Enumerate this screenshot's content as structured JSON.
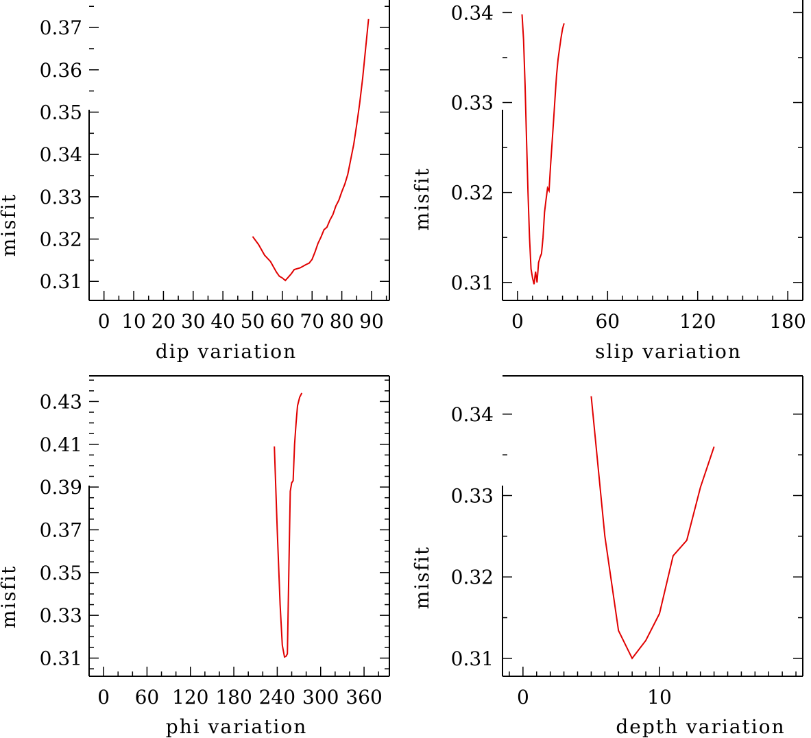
{
  "chart_data": [
    {
      "id": "dip",
      "type": "line",
      "xlabel": "dip    variation",
      "ylabel": "misfit",
      "xlim": [
        -5,
        96
      ],
      "ylim": [
        0.3055,
        0.3765
      ],
      "xticks": [
        0,
        10,
        20,
        30,
        40,
        50,
        60,
        70,
        80,
        90
      ],
      "xtick_labels": [
        "0",
        "10",
        "20",
        "30",
        "40",
        "50",
        "60",
        "70",
        "80",
        "90"
      ],
      "x_minor_step": 5,
      "yticks": [
        0.31,
        0.32,
        0.33,
        0.34,
        0.35,
        0.36,
        0.37
      ],
      "ytick_labels": [
        "0.31",
        "0.32",
        "0.33",
        "0.34",
        "0.35",
        "0.36",
        "0.37"
      ],
      "y_minor_step": 0.005,
      "series": [
        {
          "name": "misfit",
          "color": "#e00000",
          "x": [
            50,
            52,
            54,
            56,
            58,
            59,
            60,
            61,
            62,
            63,
            64,
            66,
            68,
            69,
            70,
            71,
            72,
            73,
            74,
            75,
            76,
            77,
            78,
            79,
            80,
            81,
            82,
            83,
            84,
            85,
            86,
            87,
            88,
            89
          ],
          "y": [
            0.3206,
            0.3187,
            0.3162,
            0.3147,
            0.3122,
            0.3112,
            0.3108,
            0.3102,
            0.311,
            0.3118,
            0.3128,
            0.3132,
            0.314,
            0.3143,
            0.3152,
            0.317,
            0.319,
            0.3205,
            0.3222,
            0.3228,
            0.3245,
            0.3258,
            0.3278,
            0.3292,
            0.3312,
            0.333,
            0.3353,
            0.3388,
            0.3424,
            0.347,
            0.352,
            0.358,
            0.365,
            0.372
          ]
        }
      ]
    },
    {
      "id": "slip",
      "type": "line",
      "xlabel": "slip    variation",
      "ylabel": "misfit",
      "xlim": [
        -10,
        190
      ],
      "ylim": [
        0.308,
        0.3414
      ],
      "xticks": [
        0,
        60,
        120,
        180
      ],
      "xtick_labels": [
        "0",
        "60",
        "120",
        "180"
      ],
      "x_minor_step": 10,
      "yticks": [
        0.31,
        0.32,
        0.33,
        0.34
      ],
      "ytick_labels": [
        "0.31",
        "0.32",
        "0.33",
        "0.34"
      ],
      "y_minor_step": 0.005,
      "series": [
        {
          "name": "misfit",
          "color": "#e00000",
          "x": [
            3,
            4,
            5,
            6,
            7,
            8,
            9,
            10,
            11,
            12,
            13,
            14,
            15,
            16,
            17,
            18,
            19,
            20,
            21,
            22,
            23,
            24,
            25,
            26,
            27,
            28,
            29,
            30,
            31
          ],
          "y": [
            0.3398,
            0.337,
            0.332,
            0.326,
            0.32,
            0.315,
            0.3115,
            0.3105,
            0.3098,
            0.3112,
            0.31,
            0.3122,
            0.3128,
            0.3132,
            0.315,
            0.3178,
            0.3192,
            0.3205,
            0.3202,
            0.323,
            0.3255,
            0.328,
            0.3305,
            0.333,
            0.3348,
            0.336,
            0.3372,
            0.3382,
            0.3388
          ]
        }
      ]
    },
    {
      "id": "phi",
      "type": "line",
      "xlabel": "phi     variation",
      "ylabel": "misfit",
      "xlim": [
        -20,
        395
      ],
      "ylim": [
        0.3015,
        0.442
      ],
      "xticks": [
        0,
        60,
        120,
        180,
        240,
        300,
        360
      ],
      "xtick_labels": [
        "0",
        "60",
        "120",
        "180",
        "240",
        "300",
        "360"
      ],
      "x_minor_step": 20,
      "yticks": [
        0.31,
        0.33,
        0.35,
        0.37,
        0.39,
        0.41,
        0.43
      ],
      "ytick_labels": [
        "0.31",
        "0.33",
        "0.35",
        "0.37",
        "0.39",
        "0.41",
        "0.43"
      ],
      "y_minor_step": 0.005,
      "series": [
        {
          "name": "misfit",
          "color": "#e00000",
          "x": [
            236,
            240,
            244,
            247,
            250,
            252,
            254,
            256,
            258,
            260,
            262,
            264,
            266,
            268,
            271,
            274
          ],
          "y": [
            0.409,
            0.37,
            0.335,
            0.316,
            0.3105,
            0.3108,
            0.312,
            0.35,
            0.388,
            0.392,
            0.393,
            0.41,
            0.42,
            0.428,
            0.432,
            0.434
          ]
        }
      ]
    },
    {
      "id": "depth",
      "type": "line",
      "xlabel": "depth  variation",
      "ylabel": "misfit",
      "xlim": [
        -1.5,
        20.5
      ],
      "ylim": [
        0.3078,
        0.3447
      ],
      "xticks": [
        0,
        10
      ],
      "xtick_labels": [
        "0",
        "10"
      ],
      "x_minor_step": 1,
      "yticks": [
        0.31,
        0.32,
        0.33,
        0.34
      ],
      "ytick_labels": [
        "0.31",
        "0.32",
        "0.33",
        "0.34"
      ],
      "y_minor_step": 0.005,
      "series": [
        {
          "name": "misfit",
          "color": "#e00000",
          "x": [
            5,
            6,
            7,
            8,
            9,
            10,
            11,
            12,
            13,
            14
          ],
          "y": [
            0.3422,
            0.325,
            0.3134,
            0.31,
            0.3122,
            0.3155,
            0.3226,
            0.3245,
            0.331,
            0.336
          ]
        }
      ]
    }
  ]
}
